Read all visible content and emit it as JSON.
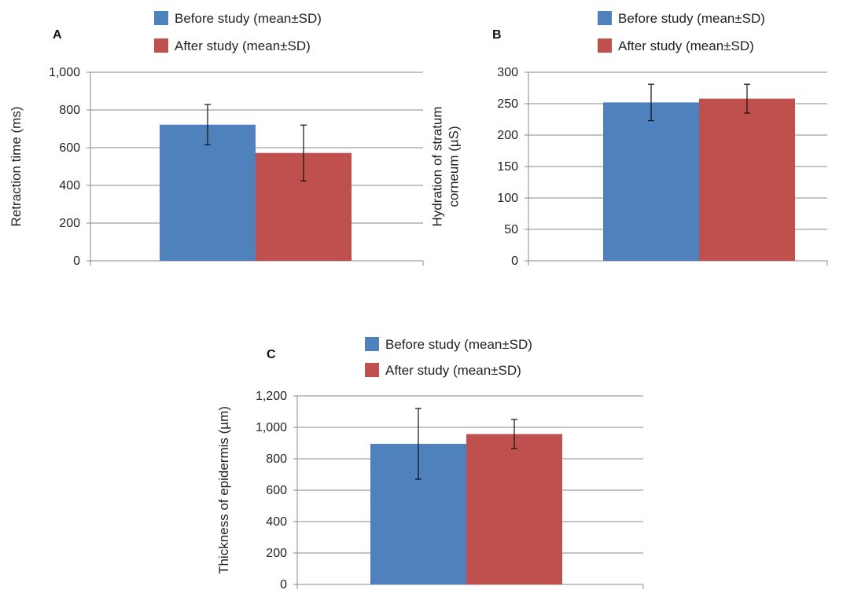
{
  "chart_data": [
    {
      "type": "bar",
      "panel": "A",
      "ylabel": [
        "Retraction time (ms)"
      ],
      "ylim": [
        0,
        1000
      ],
      "yticks": [
        "0",
        "200",
        "400",
        "600",
        "800",
        "1,000"
      ],
      "tick_values": [
        0,
        200,
        400,
        600,
        800,
        1000
      ],
      "grid": true,
      "legend_position": "top",
      "series": [
        {
          "name": "Before study (mean±SD)",
          "value": 722,
          "error": 107,
          "color": "#4F81BD"
        },
        {
          "name": "After study (mean±SD)",
          "value": 572,
          "error": 148,
          "color": "#C0504D"
        }
      ]
    },
    {
      "type": "bar",
      "panel": "B",
      "ylabel": [
        "Hydration of stratum",
        "corneum (µS)"
      ],
      "ylim": [
        0,
        300
      ],
      "yticks": [
        "0",
        "50",
        "100",
        "150",
        "200",
        "250",
        "300"
      ],
      "tick_values": [
        0,
        50,
        100,
        150,
        200,
        250,
        300
      ],
      "grid": true,
      "legend_position": "top",
      "series": [
        {
          "name": "Before study (mean±SD)",
          "value": 252,
          "error": 29,
          "color": "#4F81BD"
        },
        {
          "name": "After study (mean±SD)",
          "value": 258,
          "error": 23,
          "color": "#C0504D"
        }
      ]
    },
    {
      "type": "bar",
      "panel": "C",
      "ylabel": [
        "Thickness of epidermis (µm)"
      ],
      "ylim": [
        0,
        1200
      ],
      "yticks": [
        "0",
        "200",
        "400",
        "600",
        "800",
        "1,000",
        "1,200"
      ],
      "tick_values": [
        0,
        200,
        400,
        600,
        800,
        1000,
        1200
      ],
      "grid": true,
      "legend_position": "top",
      "series": [
        {
          "name": "Before study (mean±SD)",
          "value": 895,
          "error": 225,
          "color": "#4F81BD"
        },
        {
          "name": "After study (mean±SD)",
          "value": 957,
          "error": 93,
          "color": "#C0504D"
        }
      ]
    }
  ]
}
